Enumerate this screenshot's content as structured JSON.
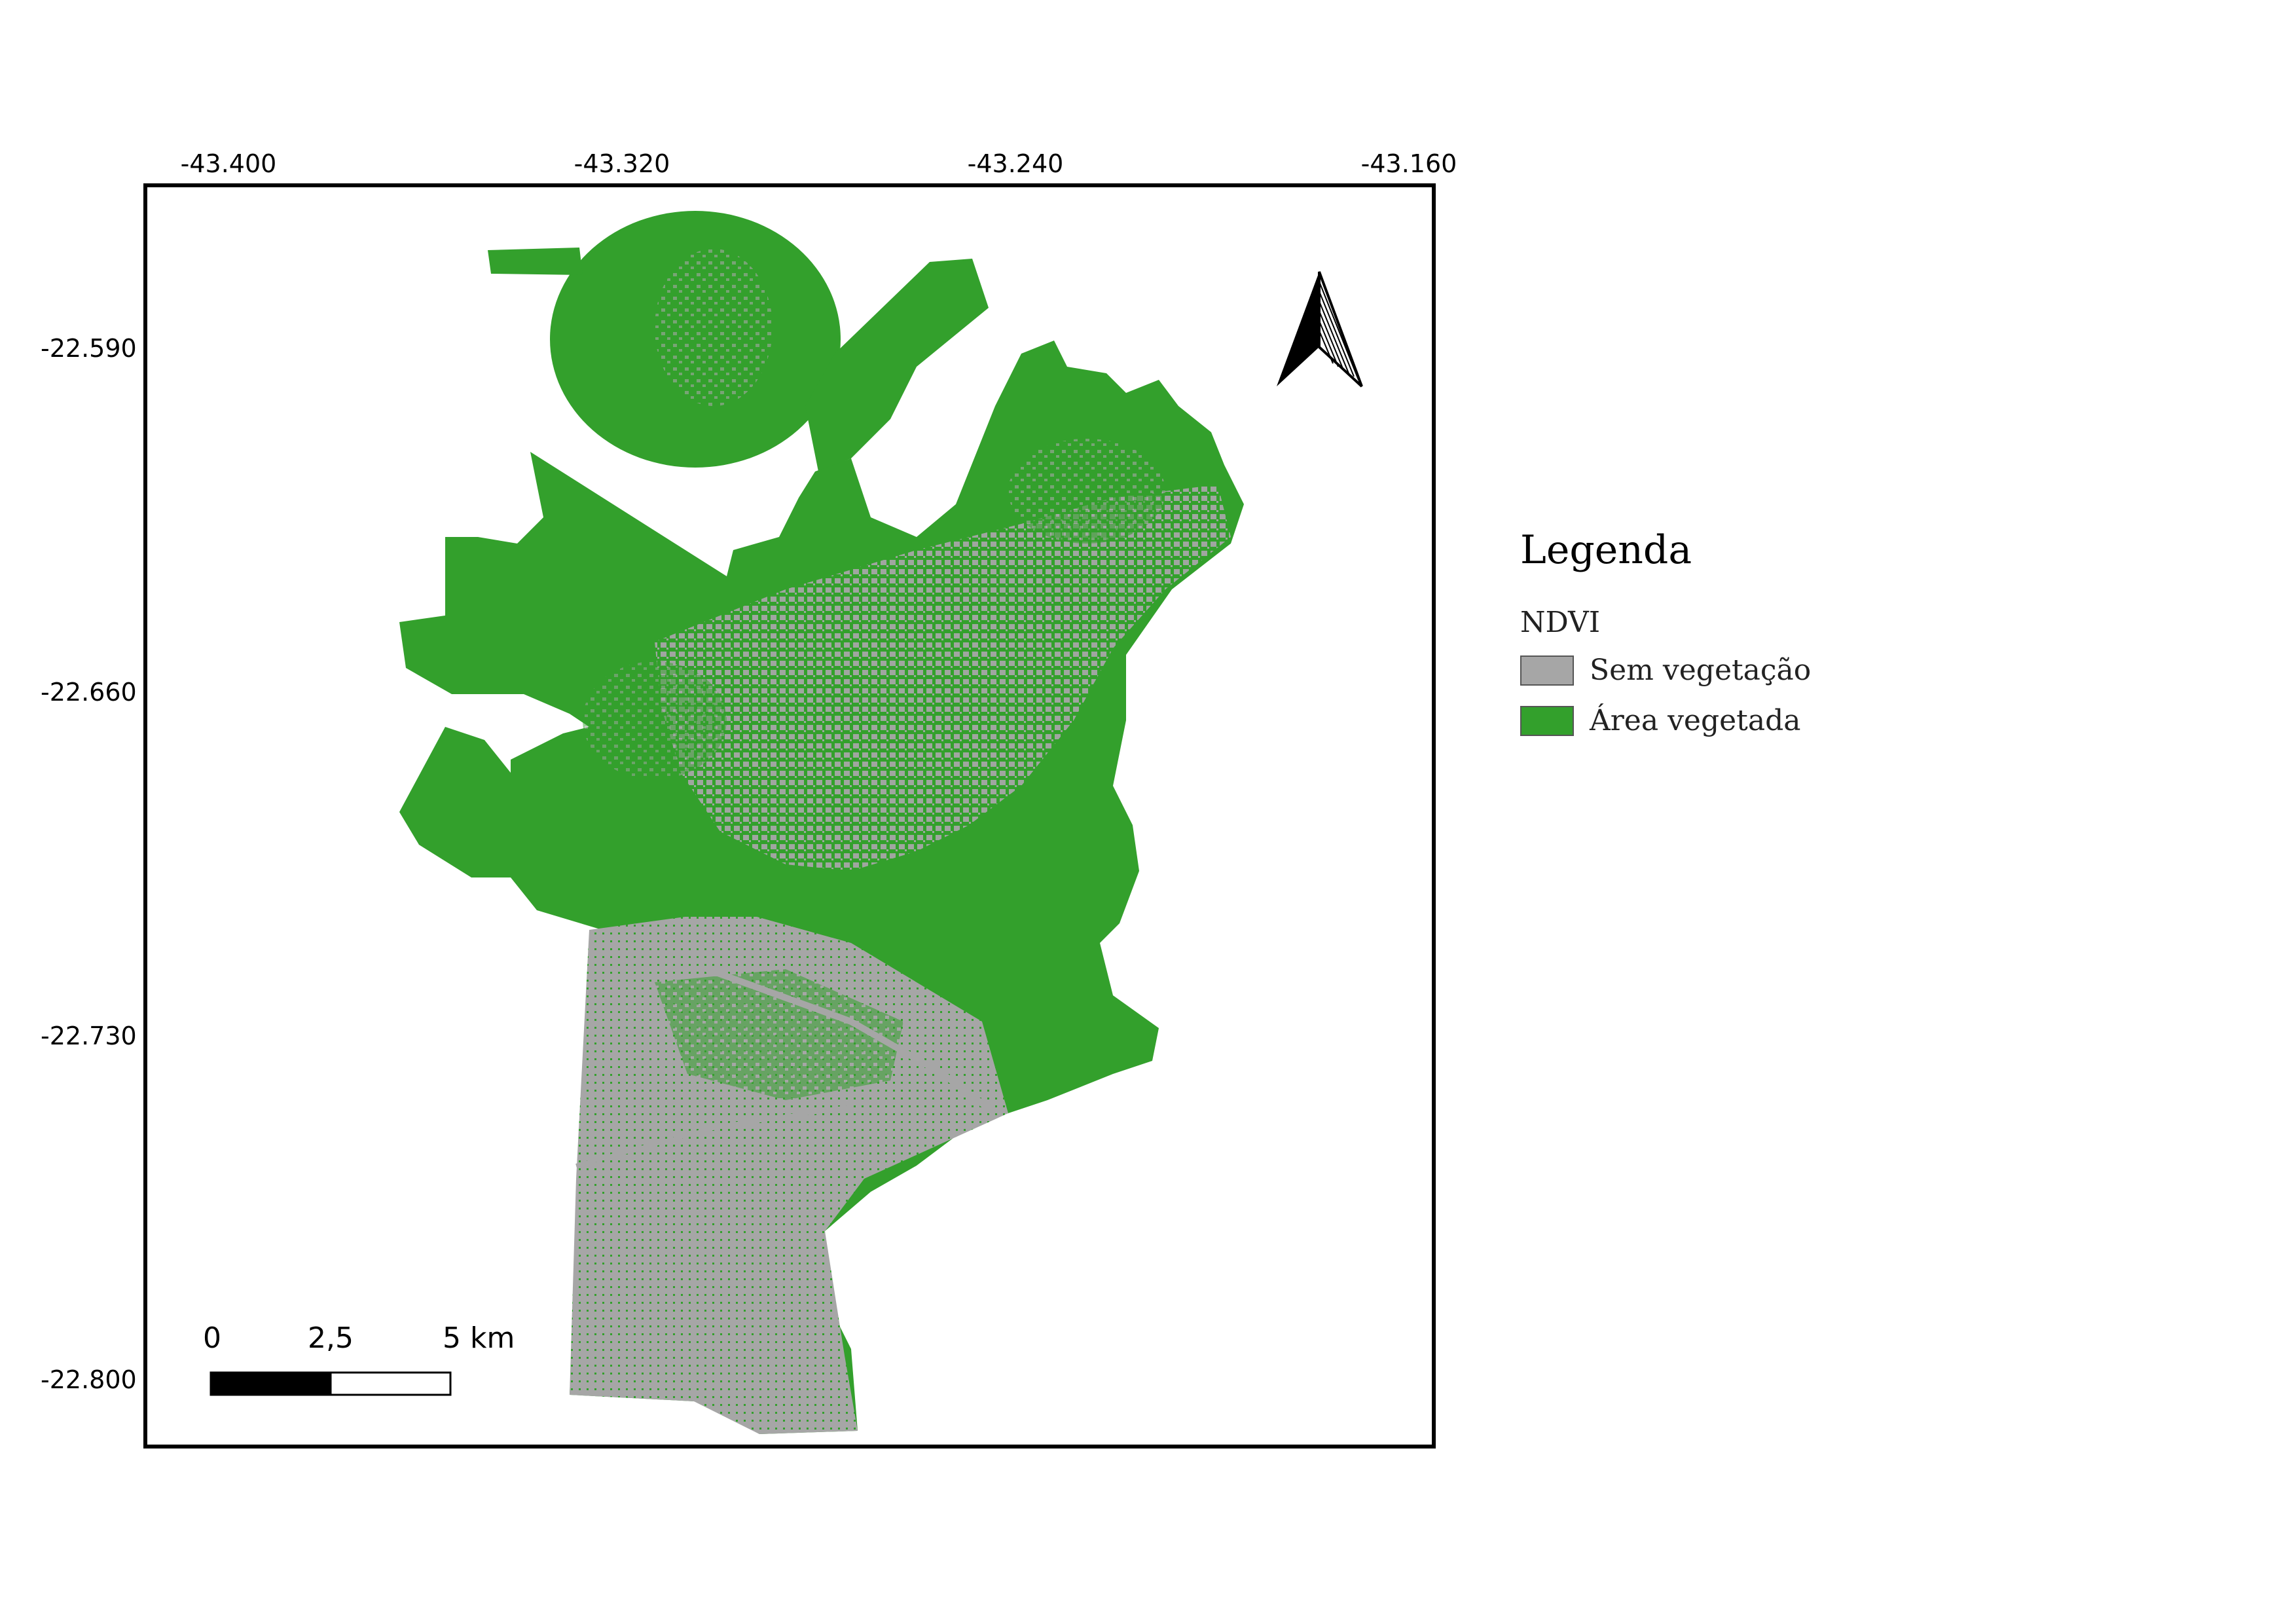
{
  "axes": {
    "lon_ticks": [
      "-43.400",
      "-43.320",
      "-43.240",
      "-43.160"
    ],
    "lat_ticks": [
      "-22.590",
      "-22.660",
      "-22.730",
      "-22.800"
    ],
    "lon_range": [
      -43.4,
      -43.16
    ],
    "lat_range": [
      -22.59,
      -22.8
    ]
  },
  "legend": {
    "title": "Legenda",
    "layer": "NDVI",
    "items": [
      {
        "label": "Sem vegetação",
        "color": "#a6a6a6"
      },
      {
        "label": "Área vegetada",
        "color": "#33a02c"
      }
    ]
  },
  "scale_bar": {
    "labels": [
      "0",
      "2,5",
      "5 km"
    ]
  },
  "colors": {
    "vegetation": "#33a02c",
    "no_vegetation": "#a6a6a6",
    "north_arrow": "#000000"
  },
  "icons": {
    "north_arrow": "north-arrow-icon"
  }
}
